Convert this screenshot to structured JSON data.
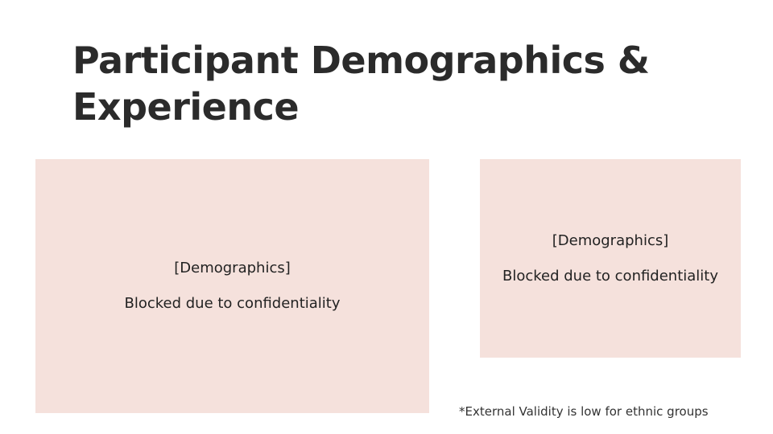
{
  "title": {
    "line1": "Participant Demographics &",
    "line2": "Experience"
  },
  "panels": [
    {
      "heading": "[Demographics]",
      "body": "Blocked due to confidentiality"
    },
    {
      "heading": "[Demographics]",
      "body": "Blocked due to confidentiality"
    }
  ],
  "footnote": "*External Validity is low for ethnic groups",
  "colors": {
    "panel_background": "#f5e1dc",
    "title_text": "#2b2b2b",
    "background": "#ffffff"
  }
}
